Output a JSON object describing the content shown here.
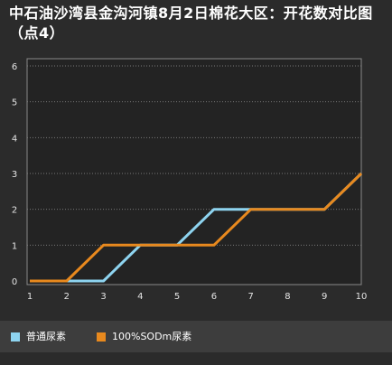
{
  "chart_data": {
    "type": "line",
    "title": "中石油沙湾县金沟河镇8月2日棉花大区：开花数对比图（点4）",
    "xlabel": "",
    "ylabel": "",
    "categories": [
      "1",
      "2",
      "3",
      "4",
      "5",
      "6",
      "7",
      "8",
      "9",
      "10"
    ],
    "x": [
      1,
      2,
      3,
      4,
      5,
      6,
      7,
      8,
      9,
      10
    ],
    "ylim": [
      0,
      6
    ],
    "yticks": [
      0,
      1,
      2,
      3,
      4,
      5,
      6
    ],
    "grid": "horizontal dotted",
    "legend_position": "bottom",
    "series": [
      {
        "name": "普通尿素",
        "color": "#8ed4f0",
        "values": [
          0,
          0,
          0,
          1,
          1,
          2,
          2,
          2,
          2,
          3
        ]
      },
      {
        "name": "100%SODm尿素",
        "color": "#e8891e",
        "values": [
          0,
          0,
          1,
          1,
          1,
          1,
          2,
          2,
          2,
          3
        ]
      }
    ]
  },
  "colors": {
    "background": "#2b2b2b",
    "plot_background": "#232323",
    "axis": "#8a8a8a",
    "grid": "#777777",
    "legend_background": "#3d3d3d"
  }
}
